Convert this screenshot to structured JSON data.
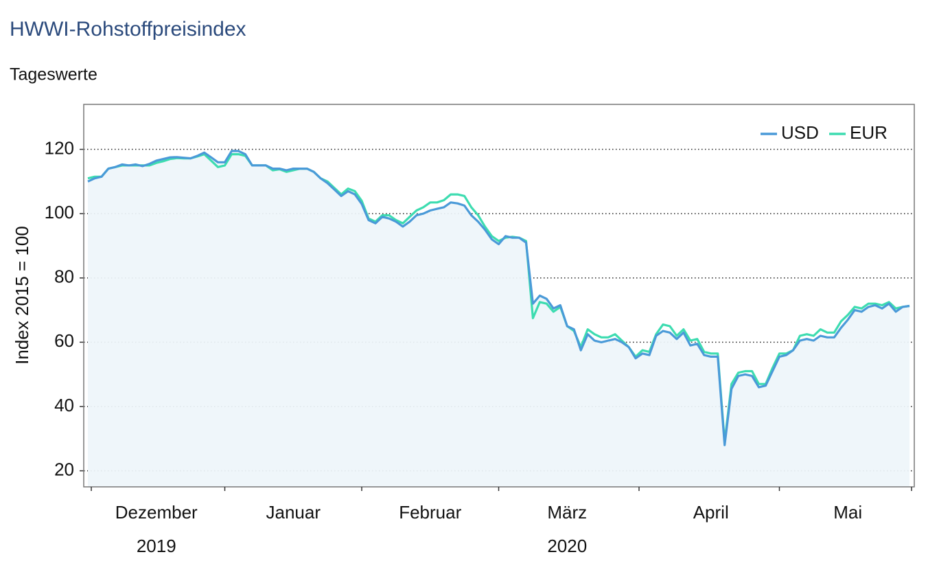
{
  "chart_data": {
    "type": "line",
    "title": "HWWI-Rohstoffpreisindex",
    "subtitle": "Tageswerte",
    "y_label": "Index 2015 = 100",
    "ylim": [
      15,
      134
    ],
    "yticks": [
      20,
      40,
      60,
      80,
      100,
      120
    ],
    "grid": true,
    "legend": "upper right",
    "area_under": "USD",
    "categories": [
      null,
      null,
      null,
      null,
      null,
      null,
      null,
      null,
      null,
      null,
      "Dezember",
      null,
      null,
      null,
      null,
      null,
      null,
      null,
      null,
      null,
      null,
      null,
      null,
      null,
      null,
      null,
      null,
      null,
      null,
      null,
      "Januar",
      null,
      null,
      null,
      null,
      null,
      null,
      null,
      null,
      null,
      null,
      null,
      null,
      null,
      null,
      null,
      null,
      null,
      null,
      null,
      "Februar",
      null,
      null,
      null,
      null,
      null,
      null,
      null,
      null,
      null,
      null,
      null,
      null,
      null,
      null,
      null,
      null,
      null,
      null,
      null,
      "März",
      null,
      null,
      null,
      null,
      null,
      null,
      null,
      null,
      null,
      null,
      null,
      null,
      null,
      null,
      null,
      null,
      null,
      null,
      null,
      null,
      "April",
      null,
      null,
      null,
      null,
      null,
      null,
      null,
      null,
      null,
      null,
      null,
      null,
      null,
      null,
      null,
      null,
      null,
      null,
      null,
      "Mai",
      null,
      null,
      null,
      null,
      null,
      null,
      null,
      null,
      null
    ],
    "year_labels": [
      null,
      null,
      null,
      null,
      null,
      null,
      null,
      null,
      null,
      null,
      "2019",
      null,
      null,
      null,
      null,
      null,
      null,
      null,
      null,
      null,
      null,
      null,
      null,
      null,
      null,
      null,
      null,
      null,
      null,
      null,
      null,
      null,
      null,
      null,
      null,
      null,
      null,
      null,
      null,
      null,
      null,
      null,
      null,
      null,
      null,
      null,
      null,
      null,
      null,
      null,
      null,
      null,
      null,
      null,
      null,
      null,
      null,
      null,
      null,
      null,
      null,
      null,
      null,
      null,
      null,
      null,
      null,
      null,
      null,
      null,
      "2020",
      null,
      null,
      null,
      null,
      null,
      null,
      null,
      null,
      null,
      null,
      null,
      null,
      null,
      null,
      null,
      null,
      null,
      null,
      null,
      null,
      null,
      null,
      null,
      null,
      null,
      null,
      null,
      null,
      null,
      null,
      null,
      null,
      null,
      null,
      null,
      null,
      null,
      null,
      null,
      null,
      null,
      null,
      null,
      null,
      null,
      null,
      null,
      null,
      null,
      null,
      null,
      null,
      null,
      null,
      null,
      null
    ],
    "series": [
      {
        "name": "USD",
        "color": "#4a9ad8",
        "values": [
          110,
          111,
          111.5,
          114,
          114.5,
          115.3,
          115,
          115.3,
          114.8,
          115.5,
          116.5,
          117,
          117.5,
          117.6,
          117.4,
          117.2,
          118,
          119,
          117.5,
          116,
          116,
          119.5,
          119.5,
          118.5,
          115,
          115,
          115,
          114,
          114,
          113.5,
          114,
          114,
          114,
          113,
          111,
          109.5,
          107.5,
          105.5,
          107,
          106,
          103,
          98,
          97,
          99,
          98.5,
          97.5,
          96,
          97.5,
          99.5,
          100,
          101,
          101.5,
          102,
          103.5,
          103.2,
          102.5,
          99.5,
          97.5,
          95,
          92,
          90.5,
          93,
          92.5,
          92.5,
          91,
          72,
          74.5,
          73.5,
          70.5,
          71.5,
          65,
          64,
          57.5,
          62.5,
          60.5,
          60,
          60.5,
          61,
          60,
          58.5,
          55,
          56.5,
          56,
          62,
          63.5,
          63,
          61,
          63,
          59,
          59.5,
          56,
          55.5,
          55.5,
          28,
          45.5,
          49.5,
          50,
          49.5,
          46,
          46.5,
          51,
          55.5,
          56,
          57.5,
          60.5,
          61,
          60.5,
          62,
          61.5,
          61.5,
          64.5,
          67,
          70,
          69.5,
          71,
          71.5,
          70.5,
          72,
          69.5,
          71,
          71.3
        ]
      },
      {
        "name": "EUR",
        "color": "#3ddcb0",
        "values": [
          111,
          111.5,
          111.5,
          114,
          114.5,
          115,
          115,
          115,
          115,
          115,
          115.8,
          116.3,
          117,
          117.3,
          117.2,
          117.2,
          117.8,
          118.5,
          116.5,
          114.5,
          115,
          118.5,
          118.5,
          118,
          115,
          115,
          115,
          113.5,
          113.8,
          113,
          113.5,
          114,
          114,
          113,
          111,
          110,
          108,
          106,
          107.8,
          107,
          104,
          98.5,
          97.5,
          99.5,
          99.5,
          98,
          97,
          99,
          101,
          102,
          103.5,
          103.5,
          104.2,
          106,
          106,
          105.5,
          102,
          99.5,
          96,
          93,
          91.5,
          92.5,
          92.8,
          92.5,
          91.5,
          67.5,
          72.5,
          72,
          69.5,
          71,
          65,
          63.5,
          58.5,
          64,
          62.5,
          61.5,
          61.5,
          62.5,
          60.5,
          58.5,
          55.5,
          57.5,
          57,
          62.5,
          65.5,
          65,
          62,
          64,
          60.5,
          61,
          57,
          56.5,
          56.5,
          29,
          47,
          50.5,
          51,
          51,
          47,
          47,
          52,
          56.5,
          56.5,
          57.5,
          62,
          62.5,
          62,
          64,
          63,
          63,
          66.5,
          68.5,
          71,
          70.5,
          72,
          72,
          71.5,
          72.5,
          70.5,
          71,
          71.3
        ]
      }
    ]
  }
}
